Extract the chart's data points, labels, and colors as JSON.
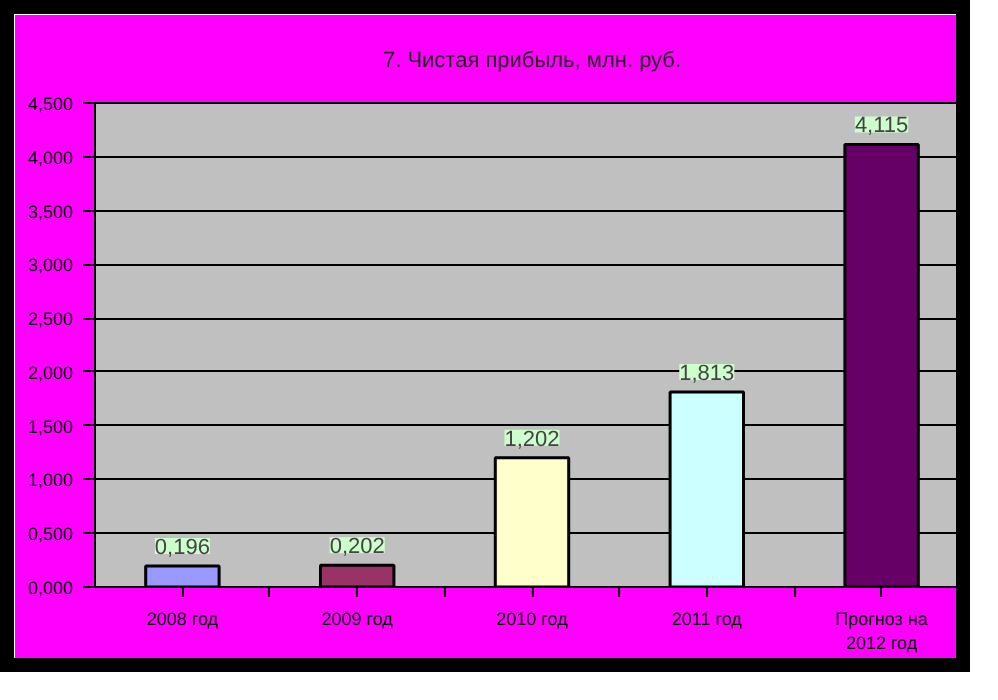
{
  "chart_data": {
    "type": "bar",
    "title": "7. Чистая прибыль, млн. руб.",
    "categories": [
      "2008 год",
      "2009 год",
      "2010 год",
      "2011 год",
      "Прогноз на 2012 год"
    ],
    "values": [
      0.196,
      0.202,
      1.202,
      1.813,
      4.115
    ],
    "colors": [
      "#9999ff",
      "#993366",
      "#ffffcc",
      "#ccffff",
      "#660066"
    ],
    "value_labels": [
      "0,196",
      "0,202",
      "1,202",
      "1,813",
      "4,115"
    ],
    "ylim": [
      0,
      4.5
    ],
    "yticks": [
      {
        "value": 0,
        "label": "0,000"
      },
      {
        "value": 0.5,
        "label": "0,500"
      },
      {
        "value": 1,
        "label": "1,000"
      },
      {
        "value": 1.5,
        "label": "1,500"
      },
      {
        "value": 2,
        "label": "2,000"
      },
      {
        "value": 2.5,
        "label": "2,500"
      },
      {
        "value": 3,
        "label": "3,000"
      },
      {
        "value": 3.5,
        "label": "3,500"
      },
      {
        "value": 4,
        "label": "4,000"
      },
      {
        "value": 4.5,
        "label": "4,500"
      }
    ],
    "grid": "y"
  }
}
